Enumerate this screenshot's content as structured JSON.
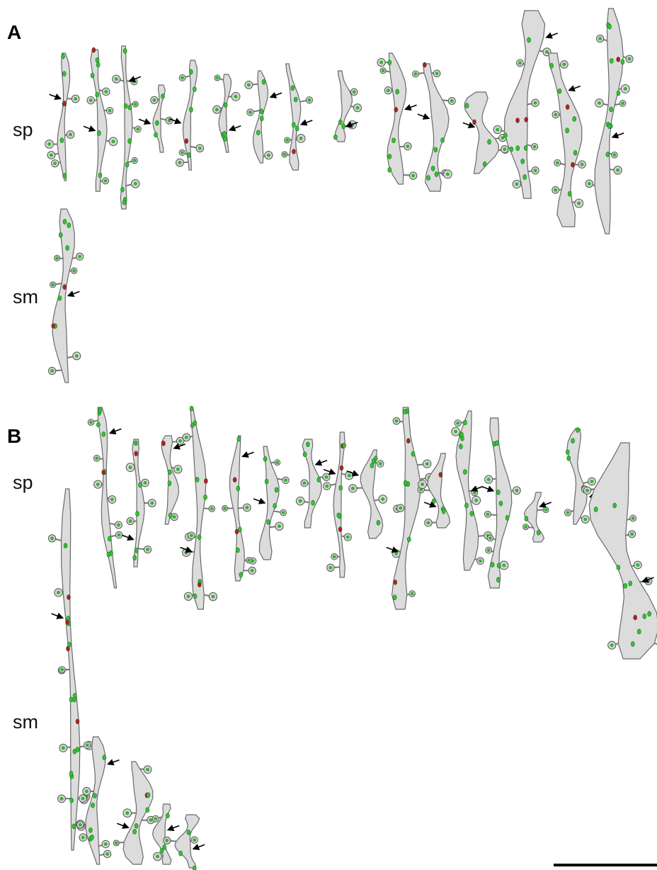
{
  "panels": [
    {
      "label": "A",
      "rows": [
        "sp",
        "sm"
      ]
    },
    {
      "label": "B",
      "rows": [
        "sp",
        "sm"
      ]
    }
  ]
}
